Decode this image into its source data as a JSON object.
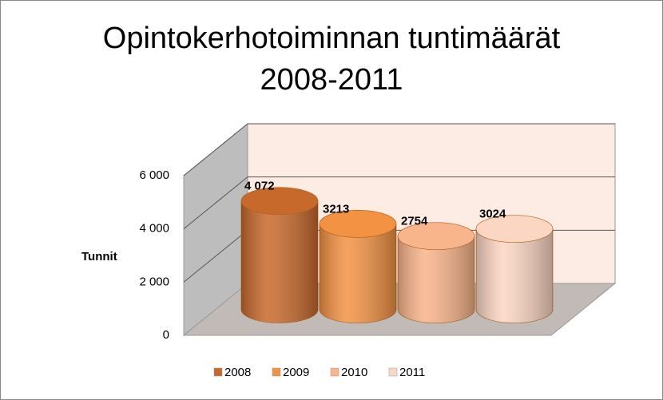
{
  "chart_data": {
    "type": "cylinder",
    "title": "Opintokerhotoiminnan tuntimäärät 2008-2011",
    "ylabel": "Tunnit",
    "ylim": [
      0,
      6000
    ],
    "yticks": [
      0,
      {
        "value": 2000,
        "label": "2 000"
      },
      {
        "value": 4000,
        "label": "4 000"
      },
      {
        "value": 6000,
        "label": "6 000"
      }
    ],
    "grid": true,
    "legend": "bottom",
    "series": [
      {
        "name": "2008",
        "color": "#c8692c",
        "values": [
          4072
        ],
        "value_labels": [
          "4 072"
        ]
      },
      {
        "name": "2009",
        "color": "#f39243",
        "values": [
          3213
        ],
        "value_labels": [
          "3213"
        ]
      },
      {
        "name": "2010",
        "color": "#f8b48a",
        "values": [
          2754
        ],
        "value_labels": [
          "2754"
        ]
      },
      {
        "name": "2011",
        "color": "#fbd6c3",
        "values": [
          3024
        ],
        "value_labels": [
          "3024"
        ]
      }
    ]
  }
}
